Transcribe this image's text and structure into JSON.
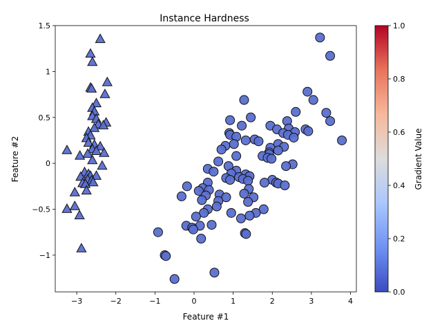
{
  "chart_data": {
    "type": "scatter",
    "title": "Instance Hardness",
    "xlabel": "Feature #1",
    "ylabel": "Feature #2",
    "xlim": [
      -3.55,
      4.15
    ],
    "ylim": [
      -1.4,
      1.5
    ],
    "xticks": [
      -3,
      -2,
      -1,
      0,
      1,
      2,
      3,
      4
    ],
    "yticks": [
      -1.0,
      -0.5,
      0.0,
      0.5,
      1.0,
      1.5
    ],
    "colorbar": {
      "label": "Gradient Value",
      "range": [
        0.0,
        1.0
      ],
      "ticks": [
        0.0,
        0.2,
        0.4,
        0.6,
        0.8,
        1.0
      ],
      "colormap": "coolwarm",
      "stops": [
        "#3b4cc0",
        "#6f92f3",
        "#aac7fd",
        "#dddcdc",
        "#f7b89c",
        "#e7745b",
        "#b40426"
      ]
    },
    "marker_color": "#5a6fd0",
    "series": [
      {
        "marker": "triangle",
        "points": [
          [
            -2.4,
            1.35
          ],
          [
            -2.65,
            1.19
          ],
          [
            -2.6,
            1.1
          ],
          [
            -2.22,
            0.88
          ],
          [
            -2.65,
            0.82
          ],
          [
            -2.62,
            0.81
          ],
          [
            -2.28,
            0.75
          ],
          [
            -2.5,
            0.65
          ],
          [
            -2.6,
            0.6
          ],
          [
            -2.55,
            0.56
          ],
          [
            -2.6,
            0.51
          ],
          [
            -2.5,
            0.48
          ],
          [
            -2.25,
            0.44
          ],
          [
            -2.45,
            0.42
          ],
          [
            -2.32,
            0.41
          ],
          [
            -2.55,
            0.38
          ],
          [
            -2.7,
            0.34
          ],
          [
            -2.65,
            0.3
          ],
          [
            -2.75,
            0.27
          ],
          [
            -2.7,
            0.22
          ],
          [
            -2.55,
            0.2
          ],
          [
            -2.4,
            0.18
          ],
          [
            -2.6,
            0.15
          ],
          [
            -3.25,
            0.14
          ],
          [
            -2.5,
            0.13
          ],
          [
            -2.3,
            0.11
          ],
          [
            -2.72,
            0.1
          ],
          [
            -2.92,
            0.08
          ],
          [
            -2.6,
            0.03
          ],
          [
            -2.35,
            -0.03
          ],
          [
            -2.8,
            -0.1
          ],
          [
            -2.7,
            -0.12
          ],
          [
            -2.65,
            -0.14
          ],
          [
            -2.5,
            -0.14
          ],
          [
            -2.9,
            -0.15
          ],
          [
            -2.72,
            -0.18
          ],
          [
            -2.62,
            -0.19
          ],
          [
            -2.58,
            -0.21
          ],
          [
            -2.85,
            -0.22
          ],
          [
            -2.78,
            -0.23
          ],
          [
            -2.75,
            -0.3
          ],
          [
            -3.05,
            -0.32
          ],
          [
            -3.05,
            -0.47
          ],
          [
            -3.25,
            -0.5
          ],
          [
            -2.93,
            -0.57
          ],
          [
            -2.88,
            -0.93
          ]
        ]
      },
      {
        "marker": "circle",
        "points": [
          [
            3.22,
            1.37
          ],
          [
            3.48,
            1.17
          ],
          [
            2.9,
            0.78
          ],
          [
            3.05,
            0.69
          ],
          [
            1.28,
            0.69
          ],
          [
            2.6,
            0.56
          ],
          [
            3.38,
            0.55
          ],
          [
            1.45,
            0.5
          ],
          [
            0.92,
            0.47
          ],
          [
            2.38,
            0.46
          ],
          [
            3.48,
            0.46
          ],
          [
            1.95,
            0.41
          ],
          [
            1.22,
            0.41
          ],
          [
            2.42,
            0.38
          ],
          [
            2.85,
            0.37
          ],
          [
            2.12,
            0.37
          ],
          [
            2.92,
            0.35
          ],
          [
            2.58,
            0.34
          ],
          [
            2.28,
            0.33
          ],
          [
            0.9,
            0.33
          ],
          [
            2.4,
            0.31
          ],
          [
            0.92,
            0.31
          ],
          [
            1.08,
            0.29
          ],
          [
            2.55,
            0.28
          ],
          [
            1.55,
            0.26
          ],
          [
            3.78,
            0.25
          ],
          [
            1.32,
            0.25
          ],
          [
            1.65,
            0.24
          ],
          [
            2.15,
            0.21
          ],
          [
            1.02,
            0.21
          ],
          [
            0.8,
            0.19
          ],
          [
            2.3,
            0.18
          ],
          [
            1.95,
            0.17
          ],
          [
            0.7,
            0.15
          ],
          [
            2.15,
            0.14
          ],
          [
            1.92,
            0.12
          ],
          [
            1.92,
            0.1
          ],
          [
            1.08,
            0.08
          ],
          [
            1.75,
            0.08
          ],
          [
            1.88,
            0.06
          ],
          [
            1.98,
            0.05
          ],
          [
            0.62,
            0.02
          ],
          [
            2.52,
            -0.01
          ],
          [
            2.35,
            -0.03
          ],
          [
            0.88,
            -0.03
          ],
          [
            0.35,
            -0.06
          ],
          [
            1.08,
            -0.08
          ],
          [
            0.5,
            -0.09
          ],
          [
            0.95,
            -0.11
          ],
          [
            1.32,
            -0.12
          ],
          [
            1.42,
            -0.14
          ],
          [
            1.15,
            -0.15
          ],
          [
            0.82,
            -0.16
          ],
          [
            1.25,
            -0.17
          ],
          [
            0.92,
            -0.18
          ],
          [
            2.0,
            -0.18
          ],
          [
            1.38,
            -0.19
          ],
          [
            2.1,
            -0.21
          ],
          [
            1.8,
            -0.21
          ],
          [
            0.35,
            -0.21
          ],
          [
            2.15,
            -0.22
          ],
          [
            2.32,
            -0.24
          ],
          [
            -0.18,
            -0.25
          ],
          [
            0.22,
            -0.27
          ],
          [
            1.4,
            -0.28
          ],
          [
            0.38,
            -0.29
          ],
          [
            0.12,
            -0.3
          ],
          [
            1.28,
            -0.33
          ],
          [
            0.65,
            -0.34
          ],
          [
            0.3,
            -0.35
          ],
          [
            -0.32,
            -0.36
          ],
          [
            0.82,
            -0.37
          ],
          [
            1.52,
            -0.37
          ],
          [
            0.2,
            -0.4
          ],
          [
            0.62,
            -0.41
          ],
          [
            1.38,
            -0.42
          ],
          [
            0.58,
            -0.47
          ],
          [
            0.35,
            -0.5
          ],
          [
            1.78,
            -0.5
          ],
          [
            1.58,
            -0.54
          ],
          [
            0.95,
            -0.54
          ],
          [
            0.25,
            -0.54
          ],
          [
            1.42,
            -0.57
          ],
          [
            0.05,
            -0.58
          ],
          [
            1.2,
            -0.6
          ],
          [
            0.45,
            -0.67
          ],
          [
            0.15,
            -0.68
          ],
          [
            -0.2,
            -0.68
          ],
          [
            -0.05,
            -0.7
          ],
          [
            -0.02,
            -0.72
          ],
          [
            -0.92,
            -0.75
          ],
          [
            1.3,
            -0.76
          ],
          [
            1.33,
            -0.77
          ],
          [
            0.18,
            -0.82
          ],
          [
            -0.75,
            -1.0
          ],
          [
            -0.72,
            -1.01
          ],
          [
            0.52,
            -1.19
          ],
          [
            -0.5,
            -1.26
          ]
        ]
      }
    ]
  }
}
